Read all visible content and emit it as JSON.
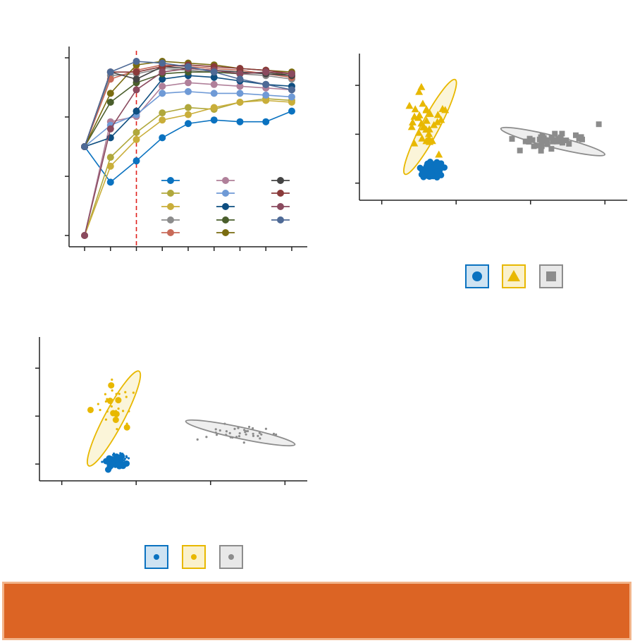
{
  "chart_data": [
    {
      "type": "line",
      "title": "",
      "xlabel": "",
      "ylabel": "",
      "x": [
        0,
        1,
        2,
        3,
        4,
        5,
        6,
        7,
        8
      ],
      "xlim": [
        -0.6,
        8.6
      ],
      "ylim": [
        0,
        1
      ],
      "threshold_x": 2,
      "threshold_color": "#e0201c",
      "legend_placement": "bottom-right",
      "series": [
        {
          "color": "#0a72c0",
          "values": [
            0.5,
            0.3,
            0.42,
            0.55,
            0.63,
            0.65,
            0.64,
            0.64,
            0.7
          ]
        },
        {
          "color": "#b0a83c",
          "values": [
            0.0,
            0.44,
            0.58,
            0.69,
            0.72,
            0.71,
            0.75,
            0.77,
            0.76
          ]
        },
        {
          "color": "#c9ae3a",
          "values": [
            0.0,
            0.39,
            0.54,
            0.65,
            0.68,
            0.72,
            0.75,
            0.76,
            0.75
          ]
        },
        {
          "color": "#8c8c8c",
          "values": [
            0.5,
            0.9,
            0.91,
            0.94,
            0.93,
            0.92,
            0.91,
            0.9,
            0.88
          ]
        },
        {
          "color": "#c86a58",
          "values": [
            0.5,
            0.88,
            0.93,
            0.96,
            0.95,
            0.94,
            0.93,
            0.91,
            0.89
          ]
        },
        {
          "color": "#b0809a",
          "values": [
            0.0,
            0.64,
            0.67,
            0.84,
            0.86,
            0.85,
            0.84,
            0.83,
            0.82
          ]
        },
        {
          "color": "#6f9ad6",
          "values": [
            0.5,
            0.62,
            0.68,
            0.8,
            0.81,
            0.8,
            0.8,
            0.79,
            0.78
          ]
        },
        {
          "color": "#0e4e80",
          "values": [
            0.5,
            0.55,
            0.7,
            0.88,
            0.9,
            0.89,
            0.87,
            0.85,
            0.84
          ]
        },
        {
          "color": "#4a5e2c",
          "values": [
            0.5,
            0.75,
            0.86,
            0.91,
            0.92,
            0.92,
            0.91,
            0.92,
            0.9
          ]
        },
        {
          "color": "#7a6c10",
          "values": [
            0.5,
            0.8,
            0.96,
            0.98,
            0.97,
            0.96,
            0.94,
            0.93,
            0.92
          ]
        },
        {
          "color": "#444444",
          "values": [
            0.5,
            0.92,
            0.88,
            0.95,
            0.94,
            0.93,
            0.92,
            0.91,
            0.9
          ]
        },
        {
          "color": "#8a3a3a",
          "values": [
            0.5,
            0.92,
            0.92,
            0.95,
            0.96,
            0.95,
            0.94,
            0.93,
            0.91
          ]
        },
        {
          "color": "#8a4a5e",
          "values": [
            0.0,
            0.6,
            0.82,
            0.92,
            0.94,
            0.93,
            0.91,
            0.92,
            0.91
          ]
        },
        {
          "color": "#4e6a96",
          "values": [
            0.5,
            0.92,
            0.98,
            0.97,
            0.95,
            0.92,
            0.88,
            0.85,
            0.82
          ]
        }
      ]
    },
    {
      "type": "scatter",
      "title": "",
      "xlabel": "",
      "ylabel": "",
      "xlim": [
        -0.3,
        3.3
      ],
      "ylim": [
        -0.35,
        2.65
      ],
      "marker_style": "large",
      "legend_placement": "bottom-center",
      "groups": [
        {
          "color": "#0a72c0",
          "marker": "circle",
          "center": [
            0.7,
            0.25
          ],
          "spread": [
            0.12,
            0.13
          ],
          "n": 120,
          "ellipse": null
        },
        {
          "color": "#e8b800",
          "marker": "triangle",
          "center": [
            0.6,
            1.3
          ],
          "spread": [
            0.22,
            0.5
          ],
          "n": 34,
          "ellipse": {
            "cx": 0.65,
            "cy": 1.15,
            "rx": 0.72,
            "ry": 0.18,
            "angle_deg": -62
          }
        },
        {
          "color": "#8c8c8c",
          "marker": "square",
          "center": [
            2.3,
            0.85
          ],
          "spread": [
            0.45,
            0.15
          ],
          "n": 36,
          "ellipse": {
            "cx": 2.3,
            "cy": 0.85,
            "rx": 0.72,
            "ry": 0.12,
            "angle_deg": 14
          }
        }
      ]
    },
    {
      "type": "scatter",
      "title": "",
      "xlabel": "",
      "ylabel": "",
      "xlim": [
        -0.3,
        3.3
      ],
      "ylim": [
        -0.35,
        2.65
      ],
      "marker_style": "small",
      "legend_placement": "bottom-center",
      "groups": [
        {
          "color": "#0a72c0",
          "marker": "circle",
          "center": [
            0.75,
            0.05
          ],
          "spread": [
            0.13,
            0.14
          ],
          "n": 110,
          "ellipse": null
        },
        {
          "color": "#e8b800",
          "marker": "circle",
          "center": [
            0.65,
            1.2
          ],
          "spread": [
            0.25,
            0.55
          ],
          "n": 34,
          "ellipse": {
            "cx": 0.7,
            "cy": 0.95,
            "rx": 0.72,
            "ry": 0.2,
            "angle_deg": -62
          }
        },
        {
          "color": "#8c8c8c",
          "marker": "circle",
          "center": [
            2.4,
            0.65
          ],
          "spread": [
            0.5,
            0.15
          ],
          "n": 34,
          "ellipse": {
            "cx": 2.4,
            "cy": 0.65,
            "rx": 0.75,
            "ry": 0.12,
            "angle_deg": 12
          }
        }
      ]
    }
  ],
  "banner": {
    "color": "#dc6424",
    "text": ""
  }
}
